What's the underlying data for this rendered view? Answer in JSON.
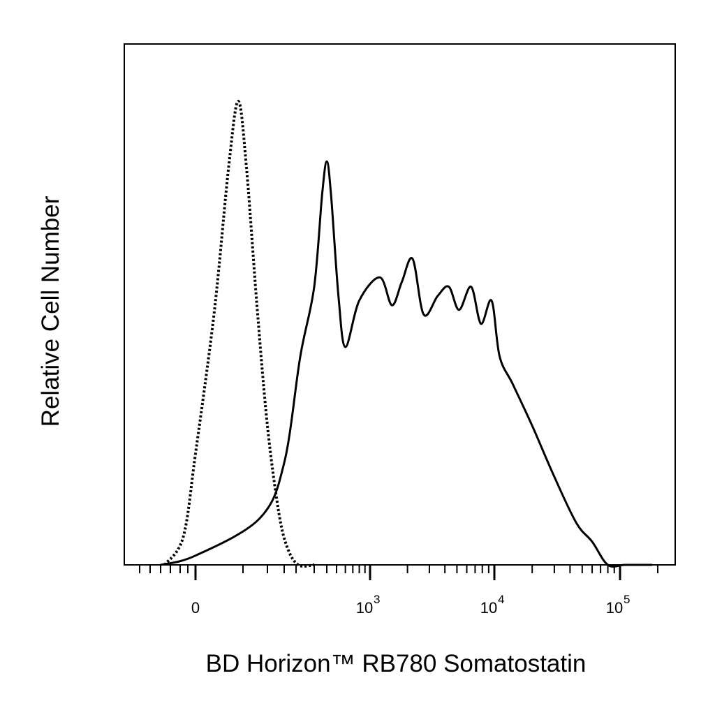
{
  "chart_data": {
    "type": "area",
    "title": "",
    "xlabel": "BD Horizon™ RB780 Somatostatin",
    "ylabel": "Relative Cell Number",
    "x_scale": "biexponential",
    "xlim": [
      -150,
      200000
    ],
    "ylim": [
      0,
      1
    ],
    "grid": false,
    "legend": "none",
    "tick_labels": [
      {
        "value": 0,
        "base": "0",
        "exp": ""
      },
      {
        "value": 1000,
        "base": "10",
        "exp": "3"
      },
      {
        "value": 10000,
        "base": "10",
        "exp": "4"
      },
      {
        "value": 100000,
        "base": "10",
        "exp": "5"
      }
    ],
    "series": [
      {
        "style": "dotted",
        "color": "#000000",
        "points": [
          [
            -90,
            0.0
          ],
          [
            -40,
            0.06
          ],
          [
            0,
            0.24
          ],
          [
            20,
            0.55
          ],
          [
            35,
            0.86
          ],
          [
            45,
            1.0
          ],
          [
            55,
            0.86
          ],
          [
            75,
            0.55
          ],
          [
            100,
            0.3
          ],
          [
            130,
            0.12
          ],
          [
            160,
            0.04
          ],
          [
            210,
            0.0
          ],
          [
            300,
            0.0
          ]
        ]
      },
      {
        "style": "solid",
        "color": "#000000",
        "points": [
          [
            -100,
            0.0
          ],
          [
            0,
            0.02
          ],
          [
            80,
            0.1
          ],
          [
            150,
            0.22
          ],
          [
            220,
            0.45
          ],
          [
            300,
            0.6
          ],
          [
            360,
            0.8
          ],
          [
            400,
            0.87
          ],
          [
            440,
            0.8
          ],
          [
            520,
            0.58
          ],
          [
            600,
            0.47
          ],
          [
            800,
            0.57
          ],
          [
            1200,
            0.62
          ],
          [
            1500,
            0.56
          ],
          [
            1800,
            0.61
          ],
          [
            2200,
            0.66
          ],
          [
            2700,
            0.54
          ],
          [
            3500,
            0.58
          ],
          [
            4300,
            0.6
          ],
          [
            5200,
            0.55
          ],
          [
            6500,
            0.6
          ],
          [
            7800,
            0.52
          ],
          [
            9500,
            0.57
          ],
          [
            11000,
            0.45
          ],
          [
            14000,
            0.39
          ],
          [
            20000,
            0.3
          ],
          [
            30000,
            0.19
          ],
          [
            45000,
            0.09
          ],
          [
            60000,
            0.05
          ],
          [
            80000,
            0.0
          ],
          [
            110000,
            0.0
          ],
          [
            180000,
            0.0
          ]
        ]
      }
    ]
  }
}
